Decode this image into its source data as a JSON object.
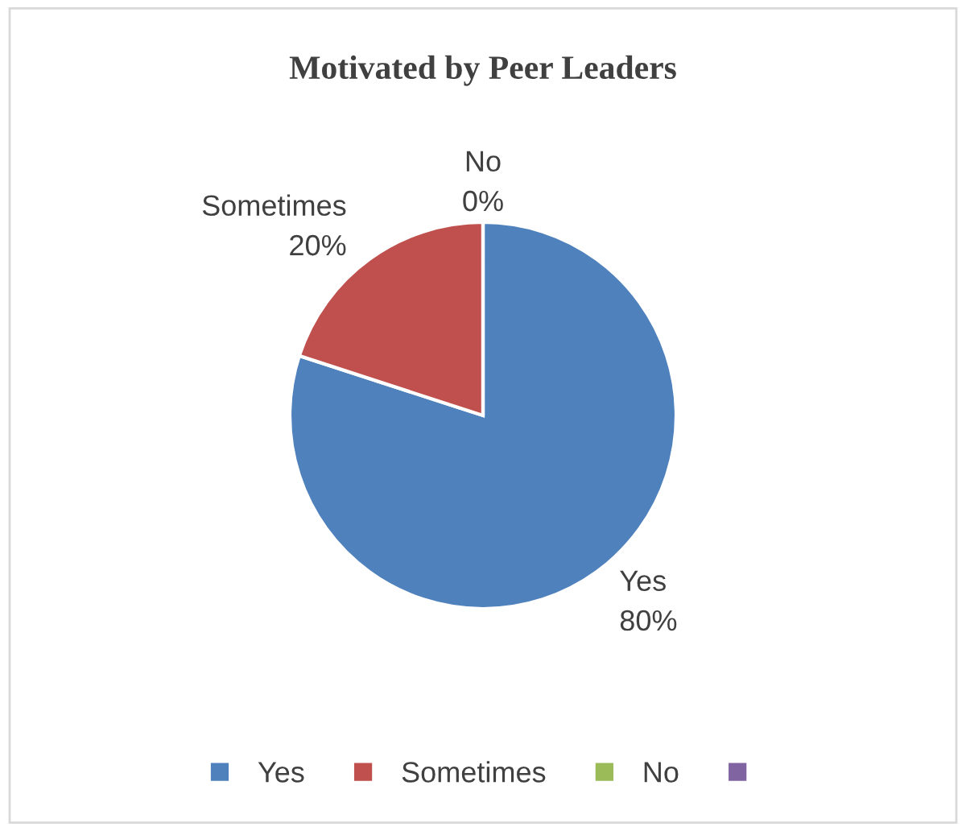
{
  "chart_data": {
    "type": "pie",
    "title": "Motivated by Peer Leaders",
    "categories": [
      "Yes",
      "Sometimes",
      "No",
      null
    ],
    "values": [
      80,
      20,
      0,
      0
    ],
    "value_labels": [
      "80%",
      "20%",
      "0%",
      null
    ],
    "colors": [
      "#4f81bd",
      "#c0504d",
      "#9bbb59",
      "#8064a2"
    ],
    "legend": "bottom"
  }
}
